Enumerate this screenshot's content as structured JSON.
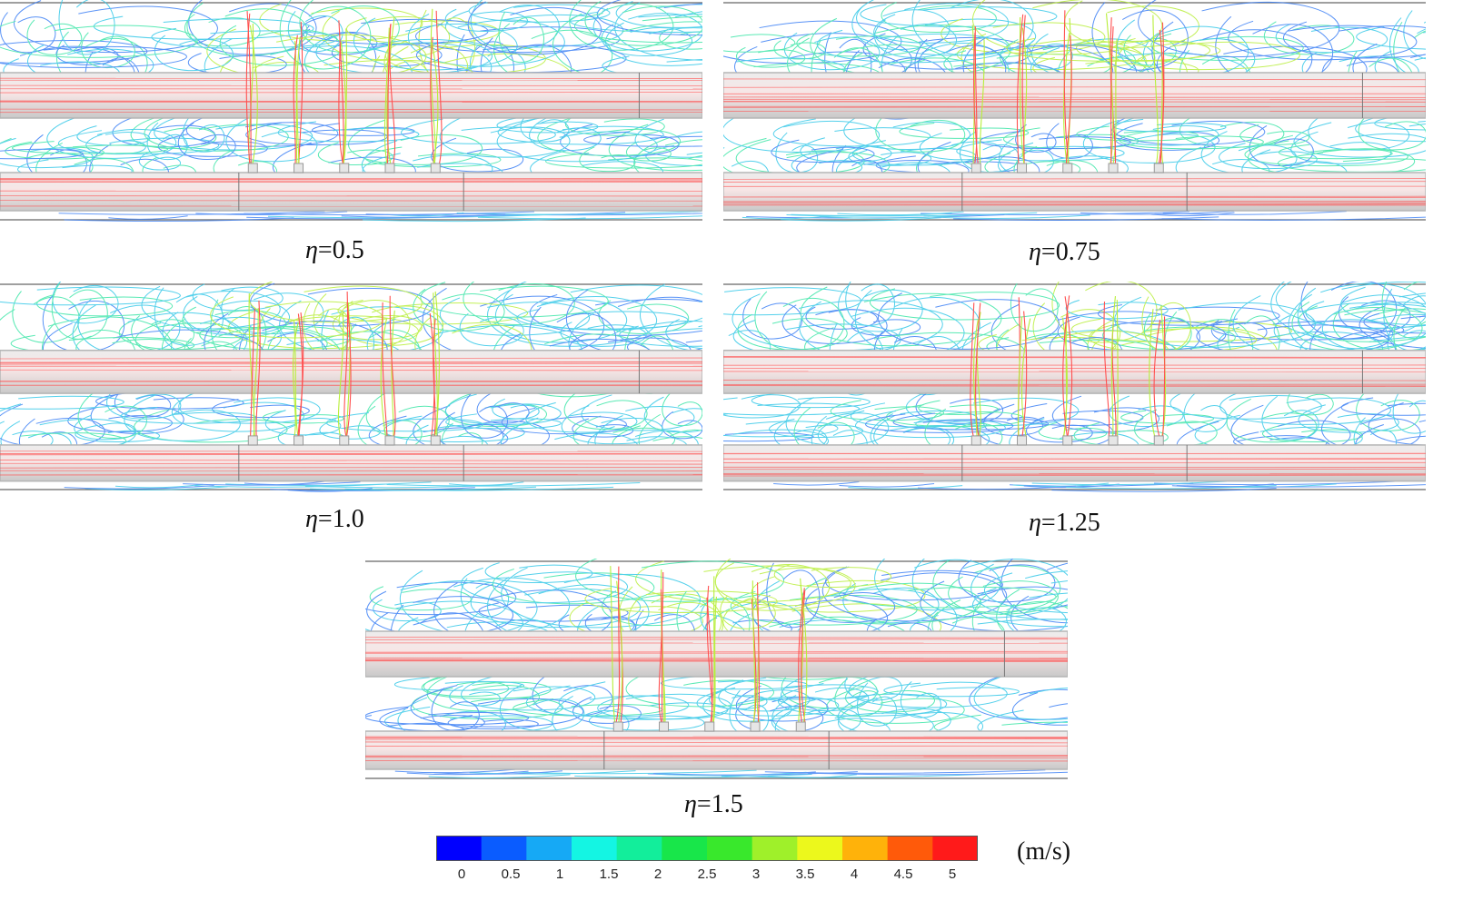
{
  "panels": [
    {
      "label": "0.5",
      "symbol": "η",
      "equals": "="
    },
    {
      "label": "0.75",
      "symbol": "η",
      "equals": "="
    },
    {
      "label": "1.0",
      "symbol": "η",
      "equals": "="
    },
    {
      "label": "1.25",
      "symbol": "η",
      "equals": "="
    },
    {
      "label": "1.5",
      "symbol": "η",
      "equals": "="
    }
  ],
  "colorbar": {
    "unit": "(m/s)",
    "ticks": [
      "0",
      "0.5",
      "1",
      "1.5",
      "2",
      "2.5",
      "3",
      "3.5",
      "4",
      "4.5",
      "5"
    ],
    "colors": [
      "#0000ff",
      "#0a5cff",
      "#16a9f5",
      "#14f5e3",
      "#12ee9b",
      "#18e64a",
      "#39e82c",
      "#9ff02a",
      "#ecf81c",
      "#ffb20a",
      "#ff5a0a",
      "#ff1a1a"
    ]
  },
  "streamline_colors": {
    "slow": "#3b7ff5",
    "mid": "#36c8e8",
    "medium": "#3ee6a8",
    "fast": "#b8ee3a",
    "jet": "#ff5050"
  },
  "pipe_color": "#d9d9d9"
}
